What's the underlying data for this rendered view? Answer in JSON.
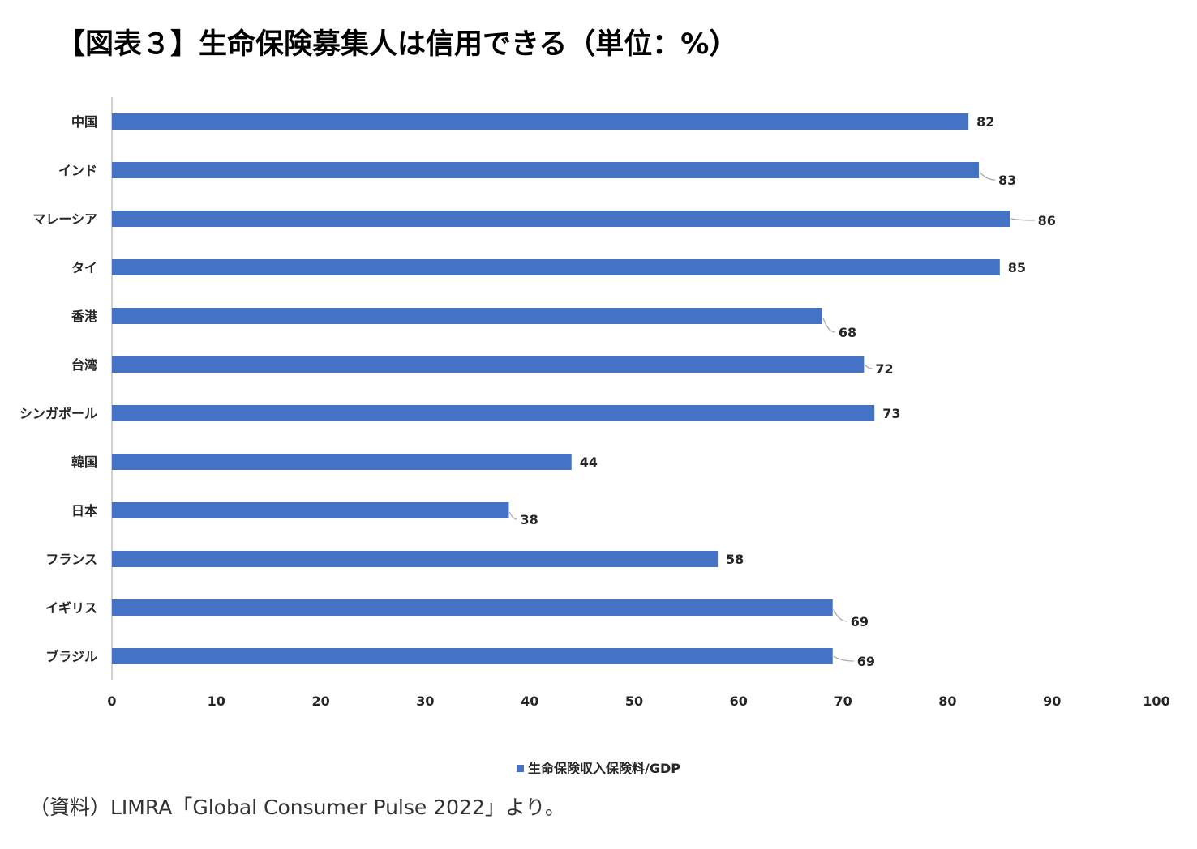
{
  "title": "【図表３】生命保険募集人は信用できる（単位：%）",
  "source_note": "（資料）LIMRA「Global Consumer Pulse 2022」より。",
  "colors": {
    "bar": "#4472C4",
    "axis": "#BFBFBF",
    "label": "#262626"
  },
  "chart_data": {
    "type": "bar",
    "orientation": "horizontal",
    "categories": [
      "中国",
      "インド",
      "マレーシア",
      "タイ",
      "香港",
      "台湾",
      "シンガポール",
      "韓国",
      "日本",
      "フランス",
      "イギリス",
      "ブラジル"
    ],
    "series": [
      {
        "name": "生命保険収入保険料/GDP",
        "values": [
          82,
          83,
          86,
          85,
          68,
          72,
          73,
          44,
          38,
          58,
          69,
          69
        ]
      }
    ],
    "data_labels": [
      "82",
      "83",
      "86",
      "85",
      "68",
      "72",
      "73",
      "44",
      "38",
      "58",
      "69",
      "69"
    ],
    "xlim": [
      0,
      100
    ],
    "x_ticks": [
      "0",
      "10",
      "20",
      "30",
      "40",
      "50",
      "60",
      "70",
      "80",
      "90",
      "100"
    ],
    "grid": false,
    "legend": "bottom-center"
  }
}
